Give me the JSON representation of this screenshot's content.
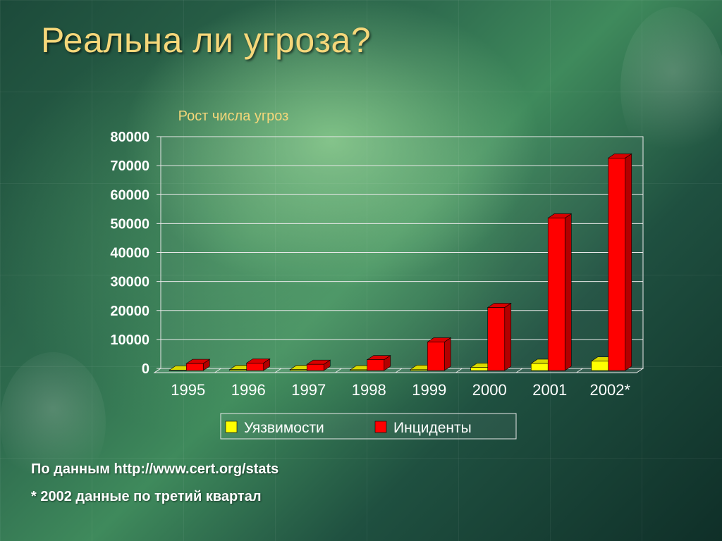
{
  "slide": {
    "title": "Реальна ли угроза?",
    "source_note": "По данным http://www.cert.org/stats",
    "footnote": "* 2002 данные по третий квартал"
  },
  "chart_data": {
    "type": "bar",
    "title": "Рост числа угроз",
    "categories": [
      "1995",
      "1996",
      "1997",
      "1998",
      "1999",
      "2000",
      "2001",
      "2002*"
    ],
    "series": [
      {
        "name": "Уязвимости",
        "color": "#ffff00",
        "values": [
          171,
          345,
          311,
          262,
          417,
          1090,
          2437,
          3222
        ]
      },
      {
        "name": "Инциденты",
        "color": "#ff0000",
        "values": [
          2412,
          2573,
          2134,
          3734,
          9859,
          21756,
          52658,
          73359
        ]
      }
    ],
    "y_ticks": [
      "0",
      "10000",
      "20000",
      "30000",
      "40000",
      "50000",
      "60000",
      "70000",
      "80000"
    ],
    "ylim": [
      0,
      80000
    ],
    "grid": true,
    "legend_position": "bottom"
  }
}
